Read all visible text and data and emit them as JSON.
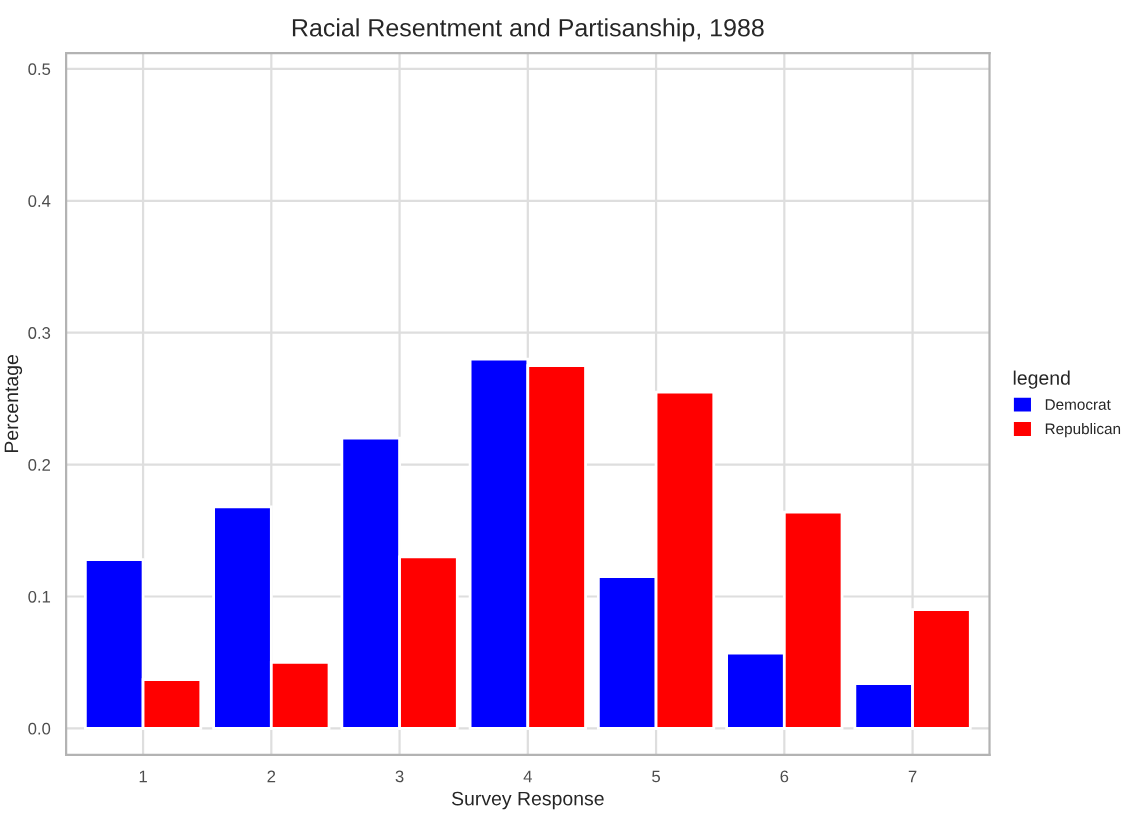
{
  "chart_data": {
    "type": "bar",
    "title": "Racial Resentment and Partisanship, 1988",
    "xlabel": "Survey Response",
    "ylabel": "Percentage",
    "legend_title": "legend",
    "categories": [
      "1",
      "2",
      "3",
      "4",
      "5",
      "6",
      "7"
    ],
    "series": [
      {
        "name": "Democrat",
        "color": "#0000ff",
        "values": [
          0.128,
          0.168,
          0.22,
          0.28,
          0.115,
          0.057,
          0.034
        ]
      },
      {
        "name": "Republican",
        "color": "#ff0000",
        "values": [
          0.037,
          0.05,
          0.13,
          0.275,
          0.255,
          0.164,
          0.09
        ]
      }
    ],
    "ylim": [
      -0.02,
      0.512
    ],
    "yticks": [
      {
        "value": 0,
        "label": "0.0"
      },
      0.1,
      0.2,
      0.3,
      0.4,
      0.5
    ],
    "grid": true,
    "legend": "right"
  }
}
